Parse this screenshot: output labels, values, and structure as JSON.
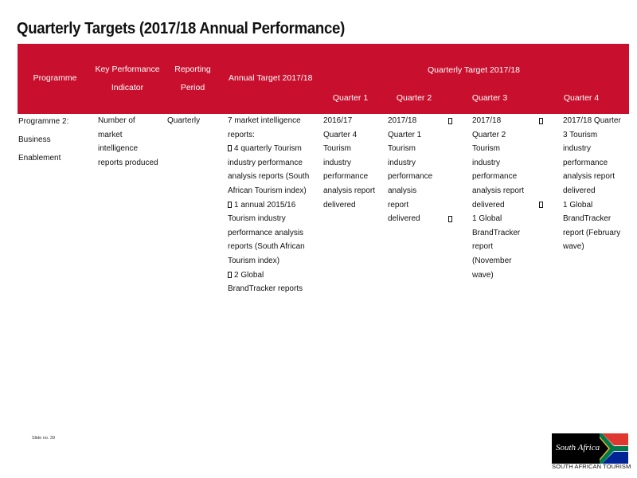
{
  "page": {
    "title": "Quarterly Targets (2017/18  Annual Performance)",
    "slide_number": "Slide no. 39"
  },
  "table": {
    "headers": {
      "programme": "Programme",
      "kpi_line1": "Key Performance",
      "kpi_line2": "Indicator",
      "period_line1": "Reporting",
      "period_line2": "Period",
      "annual_target": "Annual Target 2017/18",
      "quarterly_target": "Quarterly Target 2017/18",
      "q1": "Quarter 1",
      "q2": "Quarter 2",
      "q3": "Quarter 3",
      "q4": "Quarter 4"
    },
    "row": {
      "programme": [
        "Programme 2:",
        "Business",
        "Enablement"
      ],
      "kpi": [
        "Number of",
        "market",
        "intelligence",
        "reports produced"
      ],
      "period": "Quarterly",
      "annual_target": [
        "7 market intelligence",
        "reports:",
        "4 quarterly Tourism",
        "industry performance",
        "analysis reports (South",
        "African Tourism index)",
        "1 annual 2015/16",
        "Tourism industry",
        "performance analysis",
        "reports (South African",
        "Tourism index)",
        "2 Global",
        "BrandTracker reports"
      ],
      "q1": [
        "2016/17",
        "Quarter 4",
        "Tourism",
        "industry",
        "performance",
        "analysis report",
        "delivered"
      ],
      "q2": [
        "2017/18",
        "Quarter 1",
        "Tourism",
        "industry",
        "performance",
        "analysis",
        "report",
        "delivered"
      ],
      "q3": [
        "2017/18",
        "Quarter 2",
        "Tourism",
        "industry",
        "performance",
        "analysis report",
        "delivered",
        "1 Global",
        "BrandTracker",
        "report",
        "(November",
        "wave)"
      ],
      "q4": [
        "2017/18 Quarter",
        "3 Tourism",
        "industry",
        "performance",
        "analysis report",
        "delivered",
        "1 Global",
        "BrandTracker",
        "report (February",
        "wave)"
      ]
    },
    "colors": {
      "header_bg": "#c8102e",
      "header_text": "#ffffff"
    }
  },
  "logo": {
    "wordmark": "South Africa",
    "caption": "SOUTH AFRICAN TOURISM",
    "flag_colors": [
      "#de3831",
      "#002395",
      "#007a4d",
      "#ffb612",
      "#000000",
      "#ffffff"
    ]
  }
}
